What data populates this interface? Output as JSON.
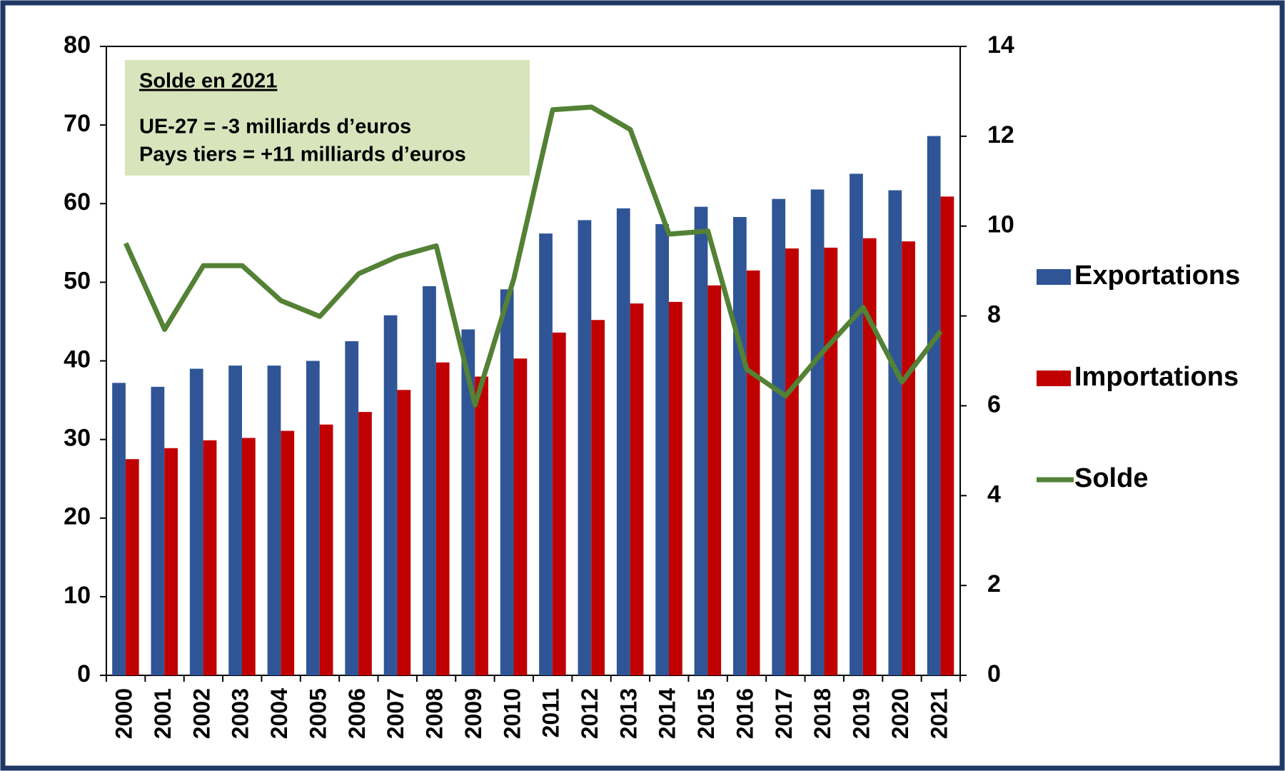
{
  "chart_data": {
    "type": "bar_line",
    "annotations": [
      "Solde en 2021",
      "UE-27 = -3 milliards d’euros",
      "Pays tiers = +11 milliards d’euros"
    ],
    "categories": [
      "2000",
      "2001",
      "2002",
      "2003",
      "2004",
      "2005",
      "2006",
      "2007",
      "2008",
      "2009",
      "2010",
      "2011",
      "2012",
      "2013",
      "2014",
      "2015",
      "2016",
      "2017",
      "2018",
      "2019",
      "2020",
      "2021"
    ],
    "series": [
      {
        "name": "Exportations",
        "color": "#2f5597",
        "type": "bar",
        "values": [
          37.2,
          36.7,
          39.0,
          39.4,
          39.4,
          40.0,
          42.5,
          45.8,
          49.5,
          44.0,
          49.1,
          56.2,
          57.9,
          59.4,
          57.4,
          59.6,
          58.3,
          60.6,
          61.8,
          63.8,
          61.7,
          68.6
        ]
      },
      {
        "name": "Importations",
        "color": "#c00000",
        "type": "bar",
        "values": [
          27.5,
          28.9,
          29.9,
          30.2,
          31.1,
          31.9,
          33.5,
          36.3,
          39.8,
          38.0,
          40.3,
          43.6,
          45.2,
          47.3,
          47.5,
          49.6,
          51.5,
          54.3,
          54.4,
          55.6,
          55.2,
          60.9
        ]
      },
      {
        "name": "Solde",
        "color": "#538135",
        "type": "line",
        "axis": "y2",
        "values": [
          9.62,
          7.7,
          9.12,
          9.12,
          8.34,
          7.99,
          8.94,
          9.32,
          9.56,
          6.02,
          8.83,
          12.59,
          12.65,
          12.15,
          9.82,
          9.89,
          6.81,
          6.22,
          7.24,
          8.19,
          6.53,
          7.66
        ]
      }
    ],
    "ylim": [
      0,
      80
    ],
    "yticks": [
      0,
      10,
      20,
      30,
      40,
      50,
      60,
      70,
      80
    ],
    "y2lim": [
      0,
      14
    ],
    "y2ticks": [
      0,
      2,
      4,
      6,
      8,
      10,
      12,
      14
    ],
    "grid": false,
    "legend": "right"
  }
}
